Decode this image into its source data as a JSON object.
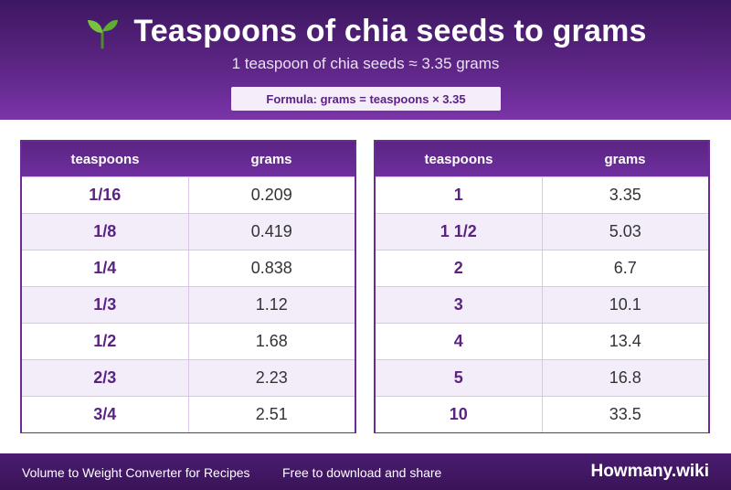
{
  "header": {
    "title": "Teaspoons of chia seeds to grams",
    "subtitle": "1 teaspoon of chia seeds ≈ 3.35 grams",
    "formula": "Formula: grams = teaspoons × 3.35",
    "icon": "sprout-icon"
  },
  "tables": {
    "left": {
      "columns": [
        "teaspoons",
        "grams"
      ],
      "rows": [
        [
          "1/16",
          "0.209"
        ],
        [
          "1/8",
          "0.419"
        ],
        [
          "1/4",
          "0.838"
        ],
        [
          "1/3",
          "1.12"
        ],
        [
          "1/2",
          "1.68"
        ],
        [
          "2/3",
          "2.23"
        ],
        [
          "3/4",
          "2.51"
        ]
      ]
    },
    "right": {
      "columns": [
        "teaspoons",
        "grams"
      ],
      "rows": [
        [
          "1",
          "3.35"
        ],
        [
          "1 1/2",
          "5.03"
        ],
        [
          "2",
          "6.7"
        ],
        [
          "3",
          "10.1"
        ],
        [
          "4",
          "13.4"
        ],
        [
          "5",
          "16.8"
        ],
        [
          "10",
          "33.5"
        ]
      ]
    }
  },
  "footer": {
    "left_text": "Volume to Weight Converter for Recipes",
    "middle_text": "Free to download and share",
    "brand": "Howmany.wiki"
  },
  "colors": {
    "accent": "#5a2382",
    "header_dark": "#3d1761",
    "row_alt": "#f3edf9"
  }
}
